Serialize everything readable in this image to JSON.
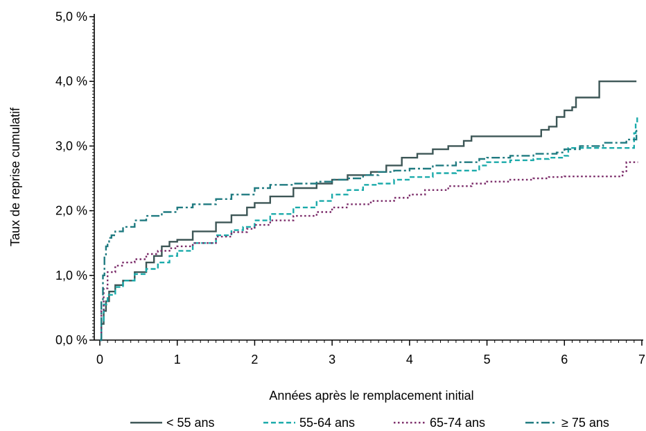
{
  "chart_data": {
    "type": "line",
    "step": true,
    "xlabel": "Années après le remplacement initial",
    "ylabel": "Taux de reprise cumulatif",
    "xlim": [
      0,
      7
    ],
    "ylim": [
      0,
      5
    ],
    "xticks": [
      0,
      1,
      2,
      3,
      4,
      5,
      6,
      7
    ],
    "xtick_labels": [
      "0",
      "1",
      "2",
      "3",
      "4",
      "5",
      "6",
      "7"
    ],
    "yticks": [
      0,
      1,
      2,
      3,
      4,
      5
    ],
    "ytick_labels": [
      "0,0 %",
      "1,0 %",
      "2,0 %",
      "3,0 %",
      "4,0 %",
      "5,0 %"
    ],
    "grid": false,
    "legend_position": "bottom",
    "series": [
      {
        "name": "< 55 ans",
        "color": "#3d5656",
        "dash": "solid",
        "x": [
          0,
          0.02,
          0.05,
          0.08,
          0.12,
          0.2,
          0.3,
          0.45,
          0.6,
          0.7,
          0.8,
          0.9,
          1.0,
          1.2,
          1.5,
          1.7,
          1.9,
          2.0,
          2.2,
          2.5,
          2.8,
          3.0,
          3.2,
          3.5,
          3.7,
          3.9,
          4.1,
          4.3,
          4.5,
          4.7,
          4.8,
          5.0,
          5.3,
          5.6,
          5.7,
          5.8,
          5.9,
          6.0,
          6.1,
          6.15,
          6.3,
          6.45,
          6.5,
          6.7,
          6.93
        ],
        "y": [
          0,
          0.25,
          0.45,
          0.6,
          0.75,
          0.85,
          0.92,
          1.05,
          1.2,
          1.3,
          1.45,
          1.52,
          1.55,
          1.68,
          1.82,
          1.93,
          2.05,
          2.12,
          2.22,
          2.35,
          2.42,
          2.48,
          2.55,
          2.6,
          2.7,
          2.82,
          2.88,
          2.95,
          3.0,
          3.08,
          3.15,
          3.15,
          3.15,
          3.15,
          3.25,
          3.3,
          3.45,
          3.55,
          3.6,
          3.75,
          3.75,
          4.0,
          4.0,
          4.0,
          4.0
        ]
      },
      {
        "name": "55-64 ans",
        "color": "#1aaaaa",
        "dash": "dashed",
        "x": [
          0,
          0.02,
          0.05,
          0.1,
          0.2,
          0.3,
          0.45,
          0.6,
          0.75,
          0.9,
          1.0,
          1.2,
          1.5,
          1.7,
          1.85,
          2.0,
          2.2,
          2.5,
          2.8,
          3.0,
          3.2,
          3.4,
          3.6,
          3.8,
          4.0,
          4.3,
          4.6,
          4.9,
          5.0,
          5.3,
          5.6,
          5.8,
          6.0,
          6.05,
          6.3,
          6.6,
          6.9,
          6.92,
          6.94
        ],
        "y": [
          0,
          0.3,
          0.55,
          0.7,
          0.82,
          0.92,
          1.02,
          1.1,
          1.2,
          1.3,
          1.38,
          1.5,
          1.62,
          1.7,
          1.75,
          1.85,
          1.95,
          2.05,
          2.15,
          2.25,
          2.32,
          2.4,
          2.42,
          2.48,
          2.52,
          2.58,
          2.62,
          2.7,
          2.75,
          2.78,
          2.8,
          2.82,
          2.85,
          2.97,
          2.97,
          2.97,
          3.2,
          3.35,
          3.45
        ]
      },
      {
        "name": "65-74 ans",
        "color": "#7a2a68",
        "dash": "dotted",
        "x": [
          0,
          0.02,
          0.05,
          0.1,
          0.2,
          0.3,
          0.45,
          0.6,
          0.75,
          0.9,
          1.0,
          1.2,
          1.5,
          1.7,
          1.9,
          2.0,
          2.2,
          2.5,
          2.8,
          3.0,
          3.2,
          3.5,
          3.8,
          4.0,
          4.2,
          4.5,
          4.8,
          5.0,
          5.3,
          5.6,
          5.8,
          6.0,
          6.3,
          6.6,
          6.75,
          6.8,
          6.95
        ],
        "y": [
          0,
          0.45,
          0.8,
          1.05,
          1.15,
          1.2,
          1.25,
          1.33,
          1.38,
          1.42,
          1.45,
          1.5,
          1.6,
          1.67,
          1.72,
          1.78,
          1.85,
          1.92,
          1.98,
          2.05,
          2.1,
          2.15,
          2.2,
          2.25,
          2.32,
          2.38,
          2.42,
          2.45,
          2.48,
          2.5,
          2.52,
          2.53,
          2.53,
          2.53,
          2.6,
          2.75,
          2.75
        ]
      },
      {
        "name": "≥ 75 ans",
        "color": "#1f7a80",
        "dash": "dashdot",
        "x": [
          0,
          0.02,
          0.04,
          0.06,
          0.08,
          0.1,
          0.12,
          0.15,
          0.2,
          0.3,
          0.45,
          0.6,
          0.8,
          1.0,
          1.2,
          1.5,
          1.7,
          2.0,
          2.2,
          2.5,
          2.8,
          3.0,
          3.2,
          3.4,
          3.6,
          3.8,
          4.0,
          4.3,
          4.6,
          4.9,
          5.0,
          5.3,
          5.6,
          5.9,
          6.0,
          6.2,
          6.5,
          6.8,
          6.93
        ],
        "y": [
          0,
          0.6,
          1.0,
          1.3,
          1.45,
          1.52,
          1.58,
          1.62,
          1.68,
          1.75,
          1.85,
          1.92,
          1.98,
          2.05,
          2.1,
          2.18,
          2.25,
          2.35,
          2.4,
          2.42,
          2.45,
          2.48,
          2.5,
          2.55,
          2.6,
          2.62,
          2.65,
          2.7,
          2.75,
          2.8,
          2.82,
          2.85,
          2.88,
          2.9,
          2.95,
          3.0,
          3.05,
          3.1,
          3.25
        ]
      }
    ]
  }
}
